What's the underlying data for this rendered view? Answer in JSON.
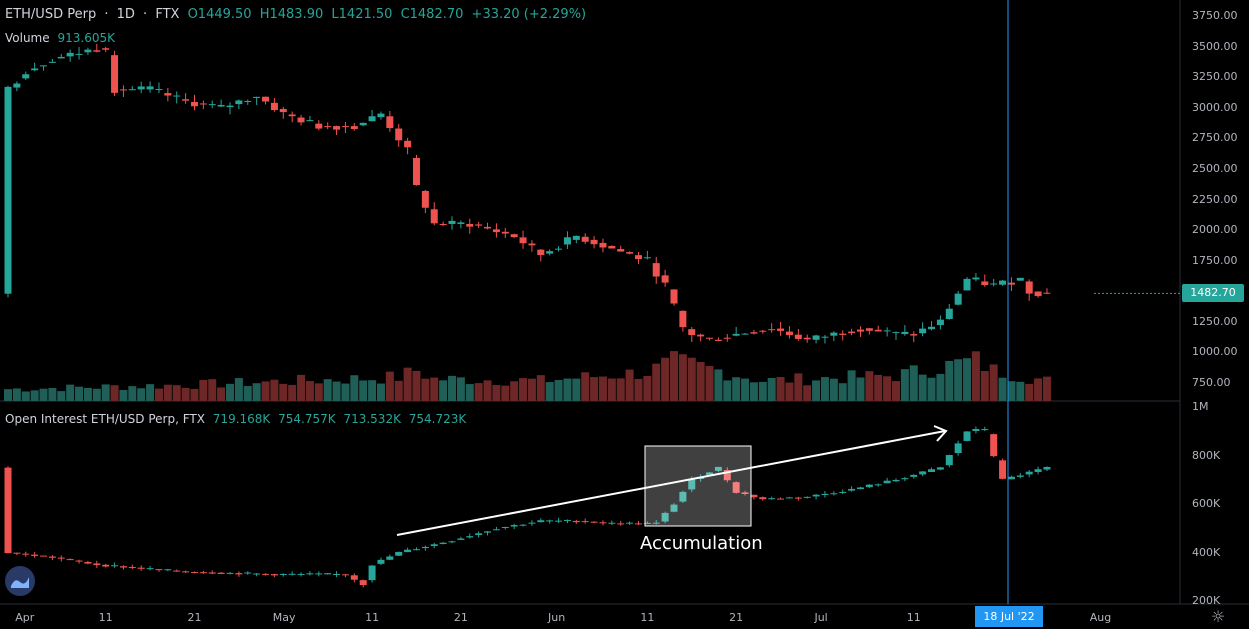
{
  "header": {
    "symbol": "ETH/USD Perp",
    "interval": "1D",
    "exchange": "FTX",
    "open": "O1449.50",
    "high": "H1483.90",
    "low": "L1421.50",
    "close": "C1482.70",
    "change": "+33.20 (+2.29%)",
    "volume_label": "Volume",
    "volume_value": "913.605K"
  },
  "oi_legend": {
    "title": "Open Interest ETH/USD Perp, FTX",
    "v1": "719.168K",
    "v2": "754.757K",
    "v3": "713.532K",
    "v4": "754.723K"
  },
  "annotation": {
    "text": "Accumulation"
  },
  "current_price_label": "1482.70",
  "crosshair_date": "18 Jul '22",
  "colors": {
    "up": "#26a69a",
    "down": "#ef5350",
    "crosshair": "#2196f3",
    "bg": "#000000"
  },
  "chart_data": [
    {
      "type": "candlestick",
      "title": "ETH/USD Perp · 1D · FTX",
      "price_ticks": [
        "3750.00",
        "3500.00",
        "3250.00",
        "3000.00",
        "2750.00",
        "2500.00",
        "2250.00",
        "2000.00",
        "1750.00",
        "1500.00",
        "1250.00",
        "1000.00",
        "750.00"
      ],
      "price_tick_values": [
        3750,
        3500,
        3250,
        3000,
        2750,
        2500,
        2250,
        2000,
        1750,
        1500,
        1250,
        1000,
        750
      ],
      "x_ticks": [
        "Apr",
        "11",
        "21",
        "May",
        "11",
        "21",
        "Jun",
        "11",
        "21",
        "Jul",
        "11",
        "18 Jul '22",
        "Aug"
      ],
      "x_tick_days": [
        2,
        11,
        21,
        31,
        41,
        51,
        62,
        72,
        82,
        92,
        102,
        109,
        123
      ],
      "close_path": [
        [
          0,
          3150
        ],
        [
          2,
          3300
        ],
        [
          5,
          3400
        ],
        [
          8,
          3450
        ],
        [
          11,
          3500
        ],
        [
          12,
          3150
        ],
        [
          16,
          3150
        ],
        [
          20,
          3050
        ],
        [
          24,
          3000
        ],
        [
          28,
          3100
        ],
        [
          31,
          2950
        ],
        [
          35,
          2850
        ],
        [
          39,
          2850
        ],
        [
          42,
          2950
        ],
        [
          45,
          2650
        ],
        [
          46,
          2350
        ],
        [
          48,
          2050
        ],
        [
          52,
          2050
        ],
        [
          57,
          1950
        ],
        [
          60,
          1800
        ],
        [
          64,
          1950
        ],
        [
          68,
          1850
        ],
        [
          72,
          1750
        ],
        [
          74,
          1550
        ],
        [
          76,
          1200
        ],
        [
          77,
          1150
        ],
        [
          79,
          1100
        ],
        [
          82,
          1150
        ],
        [
          86,
          1200
        ],
        [
          90,
          1100
        ],
        [
          96,
          1200
        ],
        [
          100,
          1150
        ],
        [
          102,
          1150
        ],
        [
          105,
          1250
        ],
        [
          108,
          1600
        ],
        [
          111,
          1550
        ],
        [
          114,
          1600
        ],
        [
          115,
          1500
        ],
        [
          117,
          1480
        ]
      ],
      "volume_path": [
        [
          0,
          70
        ],
        [
          20,
          95
        ],
        [
          44,
          140
        ],
        [
          46,
          180
        ],
        [
          48,
          130
        ],
        [
          60,
          120
        ],
        [
          72,
          170
        ],
        [
          75,
          230
        ],
        [
          80,
          180
        ],
        [
          85,
          120
        ],
        [
          100,
          150
        ],
        [
          105,
          200
        ],
        [
          109,
          240
        ],
        [
          111,
          180
        ],
        [
          117,
          120
        ]
      ]
    },
    {
      "type": "candlestick",
      "title": "Open Interest ETH/USD Perp, FTX",
      "ticks": [
        "1M",
        "800K",
        "600K",
        "400K",
        "200K"
      ],
      "tick_values": [
        1000,
        800,
        600,
        400,
        200
      ],
      "oi_path": [
        [
          0,
          400
        ],
        [
          5,
          380
        ],
        [
          10,
          350
        ],
        [
          20,
          320
        ],
        [
          30,
          310
        ],
        [
          38,
          310
        ],
        [
          40,
          270
        ],
        [
          41,
          350
        ],
        [
          44,
          400
        ],
        [
          50,
          450
        ],
        [
          55,
          500
        ],
        [
          60,
          530
        ],
        [
          64,
          530
        ],
        [
          68,
          520
        ],
        [
          73,
          520
        ],
        [
          75,
          600
        ],
        [
          77,
          700
        ],
        [
          80,
          750
        ],
        [
          82,
          650
        ],
        [
          85,
          620
        ],
        [
          90,
          630
        ],
        [
          95,
          660
        ],
        [
          100,
          700
        ],
        [
          105,
          750
        ],
        [
          108,
          900
        ],
        [
          110,
          910
        ],
        [
          111,
          800
        ],
        [
          112,
          700
        ],
        [
          114,
          720
        ],
        [
          117,
          750
        ]
      ]
    }
  ]
}
